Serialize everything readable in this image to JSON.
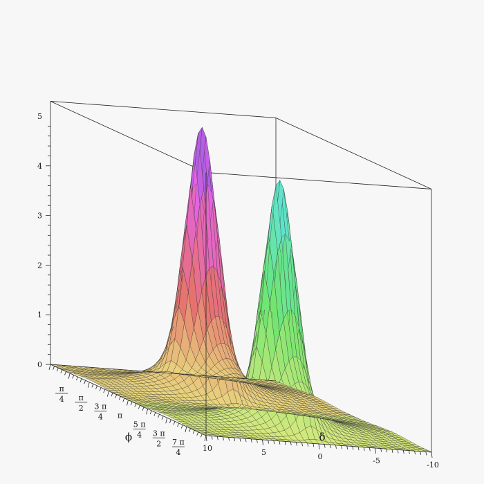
{
  "chart_data": {
    "type": "surface3d",
    "title": "",
    "xlabel": "δ",
    "ylabel": "ϕ",
    "zlabel": "",
    "x_range": [
      -10,
      10
    ],
    "y_range": [
      0,
      "2π"
    ],
    "z_range": [
      0,
      5.3
    ],
    "z_ticks": [
      "0",
      "1",
      "2",
      "3",
      "4",
      "5"
    ],
    "x_ticks": [
      "10",
      "5",
      "0",
      "-5",
      "-10"
    ],
    "y_ticks": [
      {
        "num": "π",
        "den": "4"
      },
      {
        "num": "π",
        "den": "2"
      },
      {
        "num": "3 π",
        "den": "4"
      },
      {
        "num": "π",
        "den": ""
      },
      {
        "num": "5 π",
        "den": "4"
      },
      {
        "num": "3 π",
        "den": "2"
      },
      {
        "num": "7 π",
        "den": "4"
      }
    ],
    "peaks": [
      {
        "phi": "π/2",
        "delta": 0,
        "height": 5.3
      },
      {
        "phi": "3π/2",
        "delta": 0,
        "height": 4.95
      }
    ],
    "box": true,
    "grid": false,
    "shading": "zhue"
  }
}
